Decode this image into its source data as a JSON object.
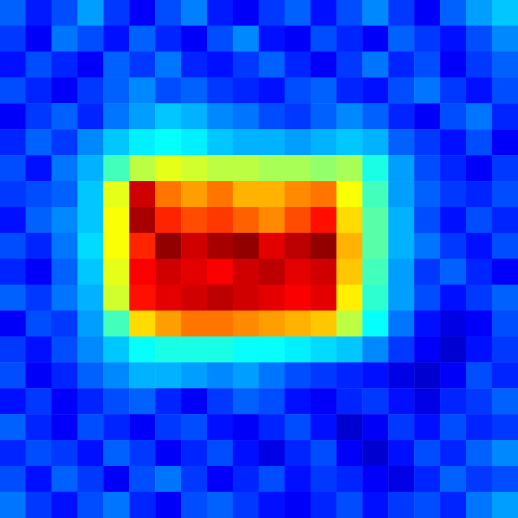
{
  "chart_data": {
    "type": "heatmap",
    "tick_labels": false,
    "grid": false,
    "color_range": [
      0,
      100
    ],
    "cells": [
      [
        22,
        15,
        20,
        28,
        18,
        12,
        20,
        25,
        15,
        12,
        18,
        22,
        14,
        20,
        26,
        18,
        12,
        22,
        28,
        32
      ],
      [
        18,
        12,
        24,
        20,
        14,
        22,
        16,
        12,
        20,
        26,
        14,
        12,
        20,
        16,
        12,
        22,
        18,
        14,
        20,
        26
      ],
      [
        14,
        20,
        16,
        12,
        22,
        18,
        24,
        16,
        14,
        18,
        22,
        16,
        12,
        18,
        24,
        16,
        20,
        12,
        18,
        22
      ],
      [
        20,
        16,
        12,
        18,
        22,
        26,
        20,
        22,
        18,
        16,
        14,
        20,
        22,
        16,
        14,
        20,
        24,
        18,
        14,
        20
      ],
      [
        12,
        18,
        22,
        16,
        24,
        28,
        32,
        30,
        26,
        24,
        20,
        18,
        22,
        26,
        22,
        16,
        12,
        20,
        24,
        16
      ],
      [
        16,
        22,
        18,
        26,
        32,
        36,
        38,
        36,
        32,
        30,
        30,
        28,
        30,
        32,
        30,
        22,
        18,
        14,
        20,
        12
      ],
      [
        20,
        14,
        24,
        30,
        44,
        56,
        60,
        58,
        56,
        56,
        54,
        54,
        52,
        54,
        40,
        28,
        20,
        16,
        12,
        18
      ],
      [
        18,
        20,
        22,
        32,
        60,
        92,
        76,
        72,
        76,
        70,
        70,
        74,
        76,
        62,
        44,
        28,
        22,
        18,
        16,
        20
      ],
      [
        14,
        22,
        26,
        32,
        62,
        96,
        84,
        80,
        82,
        78,
        74,
        80,
        86,
        66,
        46,
        30,
        20,
        14,
        20,
        16
      ],
      [
        20,
        16,
        24,
        34,
        62,
        84,
        98,
        92,
        96,
        98,
        90,
        94,
        98,
        70,
        46,
        30,
        24,
        18,
        14,
        20
      ],
      [
        16,
        12,
        22,
        32,
        60,
        88,
        92,
        90,
        88,
        92,
        94,
        90,
        92,
        68,
        44,
        28,
        18,
        22,
        16,
        12
      ],
      [
        22,
        18,
        24,
        30,
        58,
        86,
        90,
        92,
        94,
        92,
        90,
        88,
        90,
        64,
        42,
        28,
        20,
        14,
        18,
        22
      ],
      [
        12,
        20,
        18,
        28,
        44,
        66,
        72,
        76,
        76,
        74,
        72,
        70,
        68,
        56,
        38,
        24,
        14,
        10,
        12,
        20
      ],
      [
        18,
        14,
        20,
        26,
        32,
        38,
        40,
        40,
        40,
        38,
        38,
        36,
        34,
        32,
        26,
        18,
        12,
        8,
        14,
        18
      ],
      [
        20,
        12,
        16,
        22,
        26,
        30,
        30,
        28,
        26,
        28,
        24,
        20,
        18,
        16,
        14,
        10,
        8,
        12,
        20,
        16
      ],
      [
        14,
        18,
        12,
        16,
        20,
        22,
        16,
        12,
        18,
        22,
        20,
        14,
        12,
        16,
        18,
        14,
        10,
        16,
        18,
        22
      ],
      [
        22,
        16,
        12,
        20,
        16,
        12,
        18,
        20,
        14,
        12,
        16,
        20,
        14,
        8,
        12,
        18,
        14,
        20,
        16,
        18
      ],
      [
        16,
        20,
        18,
        14,
        22,
        18,
        12,
        16,
        20,
        14,
        10,
        16,
        20,
        12,
        8,
        14,
        20,
        16,
        22,
        26
      ],
      [
        20,
        14,
        22,
        18,
        12,
        20,
        24,
        18,
        12,
        16,
        20,
        14,
        18,
        16,
        12,
        10,
        16,
        22,
        18,
        20
      ],
      [
        24,
        18,
        14,
        20,
        24,
        16,
        12,
        20,
        22,
        18,
        14,
        12,
        16,
        20,
        14,
        18,
        20,
        16,
        24,
        28
      ]
    ]
  }
}
